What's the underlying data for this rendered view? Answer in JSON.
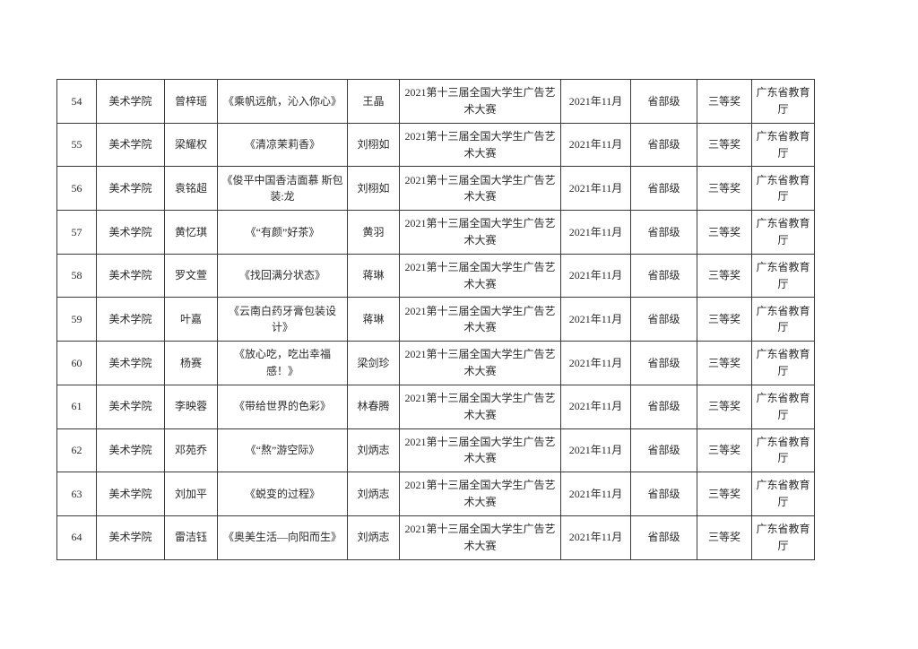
{
  "page": {
    "background": "#ffffff",
    "text_color": "#2b2b2b",
    "table_border_color": "#3a3a3a"
  },
  "table": {
    "rows": [
      [
        "54",
        "美术学院",
        "曾梓瑶",
        "《乘帆远航，沁入你心》",
        "王晶",
        "2021第十三届全国大学生广告艺术大赛",
        "2021年11月",
        "省部级",
        "三等奖",
        "广东省教育厅"
      ],
      [
        "55",
        "美术学院",
        "梁耀权",
        "《清凉茉莉香》",
        "刘栩如",
        "2021第十三届全国大学生广告艺术大赛",
        "2021年11月",
        "省部级",
        "三等奖",
        "广东省教育厅"
      ],
      [
        "56",
        "美术学院",
        "袁铭超",
        "《俊平中国香洁面慕 斯包装:龙",
        "刘栩如",
        "2021第十三届全国大学生广告艺术大赛",
        "2021年11月",
        "省部级",
        "三等奖",
        "广东省教育厅"
      ],
      [
        "57",
        "美术学院",
        "黄忆琪",
        "《“有颜”好茶》",
        "黄羽",
        "2021第十三届全国大学生广告艺术大赛",
        "2021年11月",
        "省部级",
        "三等奖",
        "广东省教育厅"
      ],
      [
        "58",
        "美术学院",
        "罗文萱",
        "《找回满分状态》",
        "蒋琳",
        "2021第十三届全国大学生广告艺术大赛",
        "2021年11月",
        "省部级",
        "三等奖",
        "广东省教育厅"
      ],
      [
        "59",
        "美术学院",
        "叶嘉",
        "《云南白药牙膏包装设计》",
        "蒋琳",
        "2021第十三届全国大学生广告艺术大赛",
        "2021年11月",
        "省部级",
        "三等奖",
        "广东省教育厅"
      ],
      [
        "60",
        "美术学院",
        "杨赛",
        "《放心吃，吃出幸福感！》",
        "梁剑珍",
        "2021第十三届全国大学生广告艺术大赛",
        "2021年11月",
        "省部级",
        "三等奖",
        "广东省教育厅"
      ],
      [
        "61",
        "美术学院",
        "李映蓉",
        "《带给世界的色彩》",
        "林春腾",
        "2021第十三届全国大学生广告艺术大赛",
        "2021年11月",
        "省部级",
        "三等奖",
        "广东省教育厅"
      ],
      [
        "62",
        "美术学院",
        "邓苑乔",
        "《“熬”游空际》",
        "刘炳志",
        "2021第十三届全国大学生广告艺术大赛",
        "2021年11月",
        "省部级",
        "三等奖",
        "广东省教育厅"
      ],
      [
        "63",
        "美术学院",
        "刘加平",
        "《蜕变的过程》",
        "刘炳志",
        "2021第十三届全国大学生广告艺术大赛",
        "2021年11月",
        "省部级",
        "三等奖",
        "广东省教育厅"
      ],
      [
        "64",
        "美术学院",
        "雷洁钰",
        "《奥美生活—向阳而生》",
        "刘炳志",
        "2021第十三届全国大学生广告艺术大赛",
        "2021年11月",
        "省部级",
        "三等奖",
        "广东省教育厅"
      ]
    ]
  }
}
